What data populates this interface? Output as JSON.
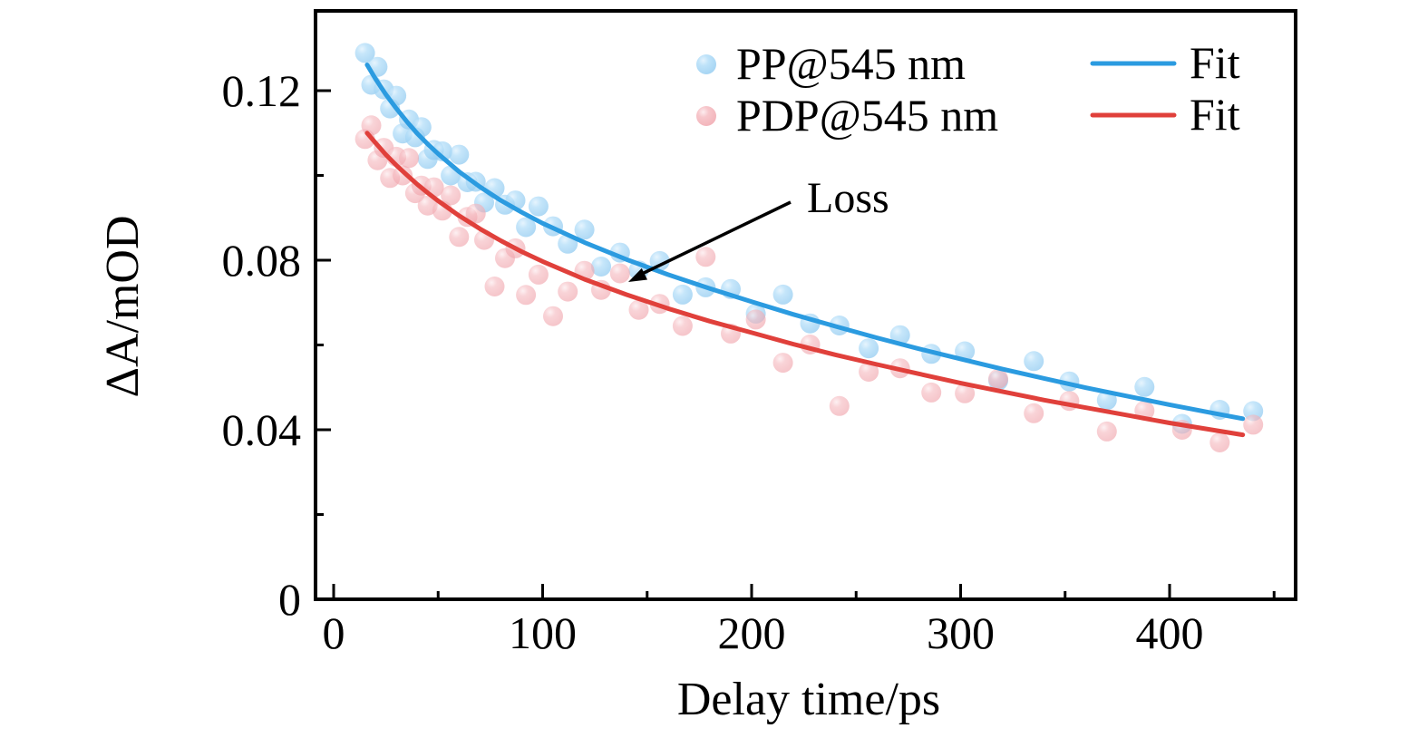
{
  "chart_data": {
    "type": "scatter",
    "title": "",
    "xlabel": "Delay time/ps",
    "ylabel": "ΔA/mOD",
    "xlim": [
      -9,
      460
    ],
    "ylim": [
      0,
      0.139
    ],
    "grid": false,
    "x_major_ticks": [
      0,
      100,
      200,
      300,
      400
    ],
    "x_major_tick_labels": [
      "0",
      "100",
      "200",
      "300",
      "400"
    ],
    "x_minor_ticks": [
      50,
      150,
      250,
      350,
      450
    ],
    "y_major_ticks": [
      0,
      0.04,
      0.08,
      0.12
    ],
    "y_major_tick_labels": [
      "0",
      "0.04",
      "0.08",
      "0.12"
    ],
    "y_minor_ticks": [
      0.02,
      0.06,
      0.1
    ],
    "tick_direction": "in",
    "legend_position": "upper center, two columns, no frame",
    "colors": {
      "pp_marker": "#AFDCF8",
      "pdp_marker": "#F5B9BF",
      "pp_fit_line": "#2B9BE0",
      "pdp_fit_line": "#E0403B",
      "annotation_arrow": "#000000"
    },
    "annotation": {
      "text": "Loss",
      "text_xy": [
        227,
        0.0948
      ],
      "arrow_from": [
        218,
        0.0935
      ],
      "arrow_to": [
        141,
        0.0751
      ]
    },
    "legend": {
      "entries": [
        {
          "label": "PP@545 nm",
          "swatch": "dot-blue"
        },
        {
          "label": "Fit",
          "swatch": "line-blue"
        },
        {
          "label": "PDP@545 nm",
          "swatch": "dot-red"
        },
        {
          "label": "Fit",
          "swatch": "line-red"
        }
      ]
    },
    "series": [
      {
        "name": "PP@545 nm",
        "kind": "scatter",
        "color": "#AFDCF8",
        "points": [
          [
            15,
            0.1289
          ],
          [
            18,
            0.1214
          ],
          [
            21,
            0.1256
          ],
          [
            24,
            0.1203
          ],
          [
            27,
            0.1158
          ],
          [
            30,
            0.1188
          ],
          [
            33,
            0.1099
          ],
          [
            36,
            0.1132
          ],
          [
            39,
            0.109
          ],
          [
            42,
            0.1114
          ],
          [
            45,
            0.1039
          ],
          [
            48,
            0.106
          ],
          [
            52,
            0.1057
          ],
          [
            56,
            0.1
          ],
          [
            60,
            0.1049
          ],
          [
            64,
            0.0984
          ],
          [
            68,
            0.0985
          ],
          [
            72,
            0.0936
          ],
          [
            77,
            0.097
          ],
          [
            82,
            0.0931
          ],
          [
            87,
            0.0941
          ],
          [
            92,
            0.0878
          ],
          [
            98,
            0.0927
          ],
          [
            105,
            0.088
          ],
          [
            112,
            0.0839
          ],
          [
            120,
            0.0872
          ],
          [
            128,
            0.0785
          ],
          [
            137,
            0.0818
          ],
          [
            146,
            0.0776
          ],
          [
            156,
            0.0798
          ],
          [
            167,
            0.0719
          ],
          [
            178,
            0.0736
          ],
          [
            190,
            0.0732
          ],
          [
            202,
            0.0674
          ],
          [
            215,
            0.0719
          ],
          [
            228,
            0.0651
          ],
          [
            242,
            0.0646
          ],
          [
            256,
            0.0592
          ],
          [
            271,
            0.0623
          ],
          [
            286,
            0.0579
          ],
          [
            302,
            0.0585
          ],
          [
            318,
            0.0516
          ],
          [
            335,
            0.0562
          ],
          [
            352,
            0.0514
          ],
          [
            370,
            0.047
          ],
          [
            388,
            0.0501
          ],
          [
            406,
            0.0414
          ],
          [
            424,
            0.0447
          ],
          [
            440,
            0.0444
          ]
        ]
      },
      {
        "name": "Fit",
        "kind": "line",
        "color": "#2B9BE0",
        "points": [
          [
            16,
            0.1261
          ],
          [
            20,
            0.1228
          ],
          [
            25,
            0.1191
          ],
          [
            30,
            0.1158
          ],
          [
            35,
            0.1127
          ],
          [
            40,
            0.1099
          ],
          [
            45,
            0.1074
          ],
          [
            50,
            0.1051
          ],
          [
            60,
            0.1009
          ],
          [
            70,
            0.0973
          ],
          [
            80,
            0.0941
          ],
          [
            90,
            0.0913
          ],
          [
            100,
            0.0887
          ],
          [
            120,
            0.0842
          ],
          [
            140,
            0.0802
          ],
          [
            160,
            0.0766
          ],
          [
            180,
            0.0733
          ],
          [
            200,
            0.0702
          ],
          [
            220,
            0.0672
          ],
          [
            240,
            0.0644
          ],
          [
            260,
            0.0617
          ],
          [
            280,
            0.0591
          ],
          [
            300,
            0.0567
          ],
          [
            320,
            0.0543
          ],
          [
            340,
            0.0521
          ],
          [
            360,
            0.0499
          ],
          [
            380,
            0.0479
          ],
          [
            400,
            0.0459
          ],
          [
            420,
            0.044
          ],
          [
            435,
            0.0426
          ]
        ]
      },
      {
        "name": "PDP@545 nm",
        "kind": "scatter",
        "color": "#F5B9BF",
        "points": [
          [
            15,
            0.1086
          ],
          [
            18,
            0.1118
          ],
          [
            21,
            0.1036
          ],
          [
            24,
            0.1065
          ],
          [
            27,
            0.0994
          ],
          [
            30,
            0.1044
          ],
          [
            33,
            0.1
          ],
          [
            36,
            0.1041
          ],
          [
            39,
            0.0958
          ],
          [
            42,
            0.0976
          ],
          [
            45,
            0.0929
          ],
          [
            48,
            0.0972
          ],
          [
            52,
            0.0917
          ],
          [
            56,
            0.0953
          ],
          [
            60,
            0.0855
          ],
          [
            64,
            0.0902
          ],
          [
            68,
            0.091
          ],
          [
            72,
            0.0848
          ],
          [
            77,
            0.0738
          ],
          [
            82,
            0.0805
          ],
          [
            87,
            0.0828
          ],
          [
            92,
            0.0718
          ],
          [
            98,
            0.0766
          ],
          [
            105,
            0.0668
          ],
          [
            112,
            0.0726
          ],
          [
            120,
            0.0775
          ],
          [
            128,
            0.073
          ],
          [
            137,
            0.0769
          ],
          [
            146,
            0.0683
          ],
          [
            156,
            0.0697
          ],
          [
            167,
            0.0645
          ],
          [
            178,
            0.0808
          ],
          [
            190,
            0.0627
          ],
          [
            202,
            0.066
          ],
          [
            215,
            0.0558
          ],
          [
            228,
            0.0601
          ],
          [
            242,
            0.0456
          ],
          [
            256,
            0.0537
          ],
          [
            271,
            0.0545
          ],
          [
            286,
            0.0488
          ],
          [
            302,
            0.0486
          ],
          [
            318,
            0.052
          ],
          [
            335,
            0.0439
          ],
          [
            352,
            0.0468
          ],
          [
            370,
            0.0396
          ],
          [
            388,
            0.0445
          ],
          [
            406,
            0.04
          ],
          [
            424,
            0.037
          ],
          [
            440,
            0.0412
          ]
        ]
      },
      {
        "name": "Fit",
        "kind": "line",
        "color": "#E0403B",
        "points": [
          [
            16,
            0.11
          ],
          [
            20,
            0.1077
          ],
          [
            25,
            0.1049
          ],
          [
            30,
            0.1024
          ],
          [
            35,
            0.1001
          ],
          [
            40,
            0.0979
          ],
          [
            45,
            0.0959
          ],
          [
            50,
            0.094
          ],
          [
            60,
            0.0905
          ],
          [
            70,
            0.0874
          ],
          [
            80,
            0.0846
          ],
          [
            90,
            0.082
          ],
          [
            100,
            0.0797
          ],
          [
            120,
            0.0755
          ],
          [
            140,
            0.0719
          ],
          [
            160,
            0.0686
          ],
          [
            180,
            0.0656
          ],
          [
            200,
            0.0629
          ],
          [
            220,
            0.0602
          ],
          [
            240,
            0.0577
          ],
          [
            260,
            0.0554
          ],
          [
            280,
            0.0532
          ],
          [
            300,
            0.051
          ],
          [
            320,
            0.049
          ],
          [
            340,
            0.047
          ],
          [
            360,
            0.0452
          ],
          [
            380,
            0.0434
          ],
          [
            400,
            0.0416
          ],
          [
            420,
            0.04
          ],
          [
            435,
            0.0388
          ]
        ]
      }
    ]
  }
}
